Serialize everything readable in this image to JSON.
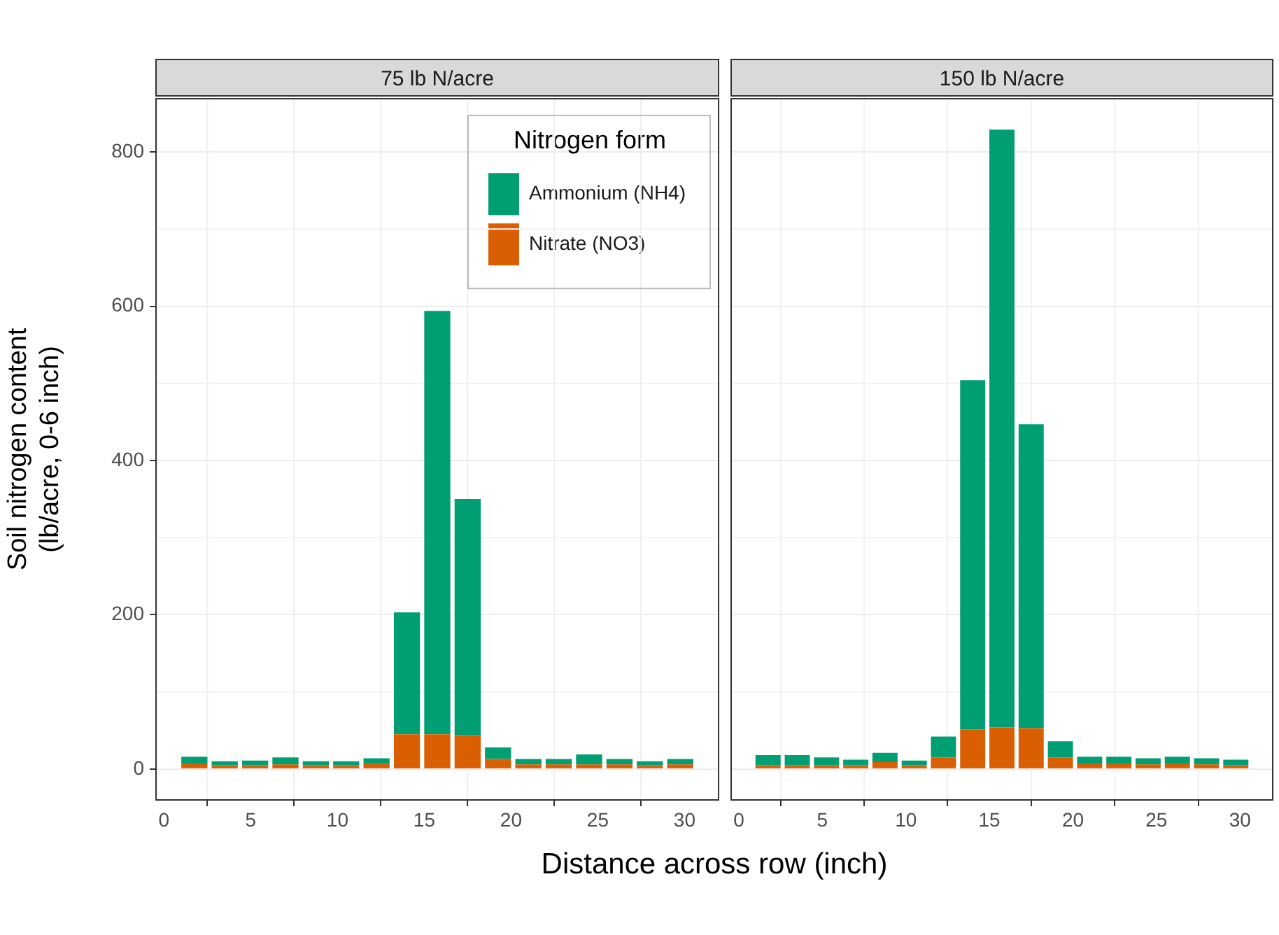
{
  "chart_data": [
    {
      "type": "bar",
      "title": "75 lb N/acre",
      "ylabel": "Soil nitrogen content\n(lb/acre, 0-6 inch)",
      "xlabel": "Distance across row (inch)",
      "legend_title": "Nitrogen form",
      "legend": "top right",
      "stacked": true,
      "grid": true,
      "x": [
        1.75,
        3.5,
        5.25,
        7,
        8.75,
        10.5,
        12.25,
        14,
        15.75,
        17.5,
        19.25,
        21,
        22.75,
        24.5,
        26.25,
        28,
        29.75
      ],
      "xlim": [
        -0.5,
        32
      ],
      "xticks": [
        0,
        5,
        10,
        15,
        20,
        25,
        30
      ],
      "ylim": [
        -41,
        870
      ],
      "yticks": [
        0,
        200,
        400,
        600,
        800
      ],
      "series": [
        {
          "name": "Nitrate (NO3)",
          "color": "#d95f02",
          "values": [
            7,
            5,
            5,
            6,
            5,
            5,
            8,
            45,
            45,
            44,
            13,
            6,
            6,
            6,
            6,
            5,
            6
          ]
        },
        {
          "name": "Ammonium (NH4)",
          "color": "#009e73",
          "values": [
            9,
            5,
            6,
            9,
            5,
            5,
            6,
            158,
            549,
            306,
            15,
            7,
            7,
            13,
            7,
            5,
            7
          ]
        }
      ]
    },
    {
      "type": "bar",
      "title": "150 lb N/acre",
      "stacked": true,
      "grid": true,
      "tick_labels": "x",
      "x": [
        1.75,
        3.5,
        5.25,
        7,
        8.75,
        10.5,
        12.25,
        14,
        15.75,
        17.5,
        19.25,
        21,
        22.75,
        24.5,
        26.25,
        28,
        29.75
      ],
      "xlim": [
        -0.5,
        32
      ],
      "xticks": [
        0,
        5,
        10,
        15,
        20,
        25,
        30
      ],
      "ylim": [
        -41,
        870
      ],
      "yticks": [
        0,
        200,
        400,
        600,
        800
      ],
      "series": [
        {
          "color": "#d95f02",
          "values": [
            5,
            5,
            5,
            5,
            9,
            5,
            15,
            51,
            54,
            53,
            15,
            7,
            7,
            6,
            7,
            6,
            5
          ]
        },
        {
          "color": "#009e73",
          "values": [
            13,
            13,
            10,
            7,
            12,
            6,
            27,
            453,
            775,
            394,
            21,
            9,
            9,
            8,
            9,
            8,
            7
          ]
        }
      ]
    }
  ]
}
